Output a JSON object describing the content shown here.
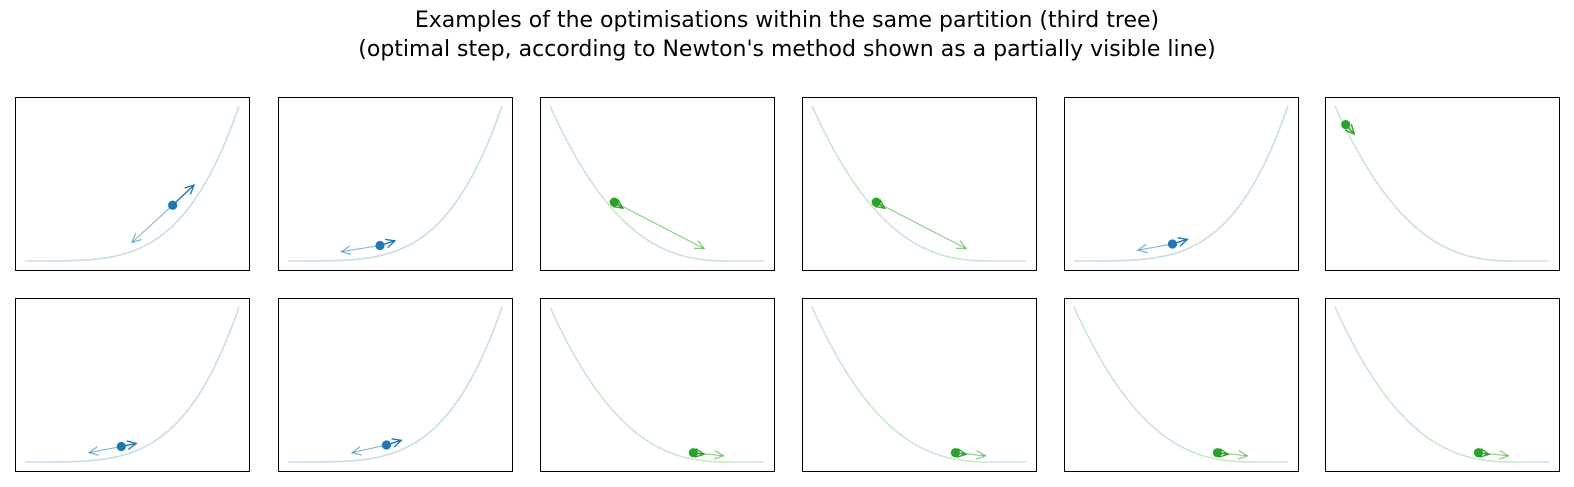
{
  "title": "Examples of the optimisations within the same partition (third tree)\n(optimal step, according to Newton's method shown as a partially visible line)",
  "colors": {
    "blue": "#1f77b4",
    "green": "#2ca02c",
    "frame": "#000000"
  },
  "chart_data": {
    "type": "line",
    "grid": false,
    "ticks": false,
    "layout_grid": {
      "rows": 2,
      "cols": 6
    },
    "xlim": [
      0,
      1
    ],
    "ylim": [
      0,
      1
    ],
    "panels": [
      {
        "color": "blue",
        "curve": "increasing",
        "point": [
          0.69,
          0.36
        ],
        "gradient_arrow": [
          0.79,
          0.49
        ],
        "newton_arrow": [
          0.5,
          0.12
        ]
      },
      {
        "color": "blue",
        "curve": "increasing",
        "point": [
          0.43,
          0.1
        ],
        "gradient_arrow": [
          0.5,
          0.13
        ],
        "newton_arrow": [
          0.25,
          0.06
        ]
      },
      {
        "color": "green",
        "curve": "decreasing",
        "point": [
          0.3,
          0.38
        ],
        "gradient_arrow": [
          0.34,
          0.34
        ],
        "newton_arrow": [
          0.72,
          0.08
        ]
      },
      {
        "color": "green",
        "curve": "decreasing",
        "point": [
          0.3,
          0.38
        ],
        "gradient_arrow": [
          0.34,
          0.34
        ],
        "newton_arrow": [
          0.72,
          0.08
        ]
      },
      {
        "color": "blue",
        "curve": "increasing",
        "point": [
          0.46,
          0.11
        ],
        "gradient_arrow": [
          0.53,
          0.14
        ],
        "newton_arrow": [
          0.3,
          0.07
        ]
      },
      {
        "color": "green",
        "curve": "decreasing",
        "point": [
          0.05,
          0.88
        ],
        "gradient_arrow": [
          0.09,
          0.82
        ],
        "newton_arrow": [
          0.09,
          0.82
        ]
      },
      {
        "color": "blue",
        "curve": "increasing",
        "point": [
          0.45,
          0.1
        ],
        "gradient_arrow": [
          0.52,
          0.12
        ],
        "newton_arrow": [
          0.3,
          0.06
        ]
      },
      {
        "color": "blue",
        "curve": "increasing",
        "point": [
          0.46,
          0.11
        ],
        "gradient_arrow": [
          0.53,
          0.14
        ],
        "newton_arrow": [
          0.3,
          0.06
        ]
      },
      {
        "color": "green",
        "curve": "decreasing",
        "point": [
          0.67,
          0.06
        ],
        "gradient_arrow": [
          0.72,
          0.05
        ],
        "newton_arrow": [
          0.81,
          0.04
        ]
      },
      {
        "color": "green",
        "curve": "decreasing",
        "point": [
          0.67,
          0.06
        ],
        "gradient_arrow": [
          0.72,
          0.05
        ],
        "newton_arrow": [
          0.81,
          0.04
        ]
      },
      {
        "color": "green",
        "curve": "decreasing",
        "point": [
          0.67,
          0.06
        ],
        "gradient_arrow": [
          0.72,
          0.05
        ],
        "newton_arrow": [
          0.81,
          0.04
        ]
      },
      {
        "color": "green",
        "curve": "decreasing",
        "point": [
          0.67,
          0.06
        ],
        "gradient_arrow": [
          0.72,
          0.05
        ],
        "newton_arrow": [
          0.81,
          0.04
        ]
      }
    ]
  }
}
